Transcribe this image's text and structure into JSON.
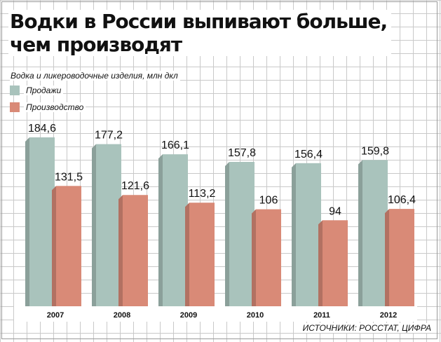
{
  "header": {
    "title_line1": "Водки в России выпивают больше,",
    "title_line2": "чем производят"
  },
  "chart_data": {
    "type": "bar",
    "subtitle": "Водка и ликероводочные изделия, млн дкл",
    "categories": [
      "2007",
      "2008",
      "2009",
      "2010",
      "2011",
      "2012"
    ],
    "series": [
      {
        "name": "Продажи",
        "values": [
          184.6,
          177.2,
          166.1,
          157.8,
          156.4,
          159.8
        ],
        "labels": [
          "184,6",
          "177,2",
          "166,1",
          "157,8",
          "156,4",
          "159,8"
        ],
        "color": "#a9c3bc"
      },
      {
        "name": "Производство",
        "values": [
          131.5,
          121.6,
          113.2,
          106,
          94,
          106.4
        ],
        "labels": [
          "131,5",
          "121,6",
          "113,2",
          "106",
          "94",
          "106,4"
        ],
        "color": "#d98a77"
      }
    ],
    "ylim": [
      0,
      200
    ],
    "grid": true,
    "legend_position": "top-left"
  },
  "footer": {
    "source": "ИСТОЧНИКИ: РОССТАТ, ЦИФРА"
  }
}
